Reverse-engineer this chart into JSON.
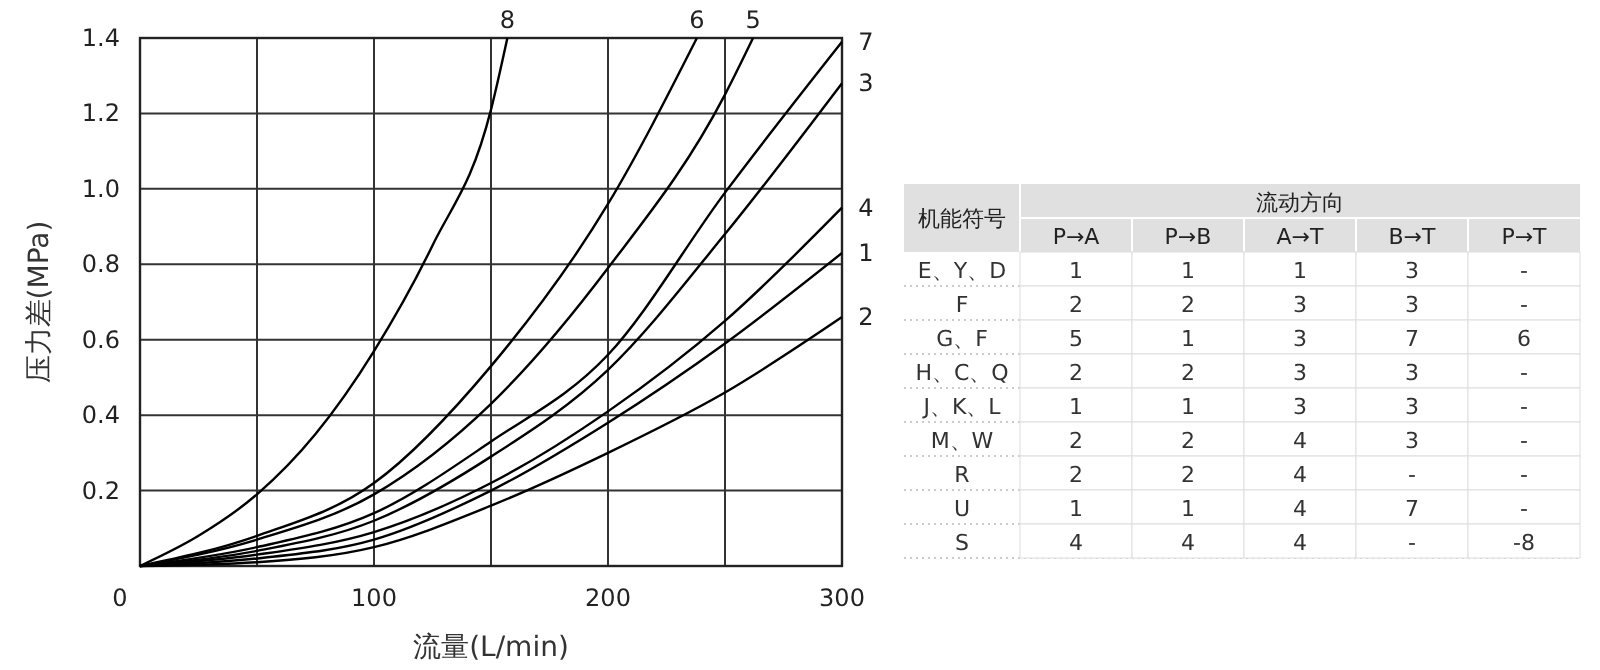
{
  "chart_data": [
    {
      "type": "line",
      "xlabel": "流量(L/min)",
      "ylabel": "压力差(MPa)",
      "xlim": [
        0,
        300
      ],
      "ylim": [
        0,
        1.4
      ],
      "xticks": [
        0,
        {
          "value": 50,
          "label": null
        },
        100,
        {
          "value": 150,
          "label": null
        },
        200,
        {
          "value": 250,
          "label": null
        },
        300
      ],
      "yticks": [
        {
          "value": 0,
          "label": null
        },
        0.2,
        0.4,
        0.6,
        0.8,
        {
          "value": 1,
          "label": "1.0"
        },
        1.2,
        1.4
      ],
      "grid": true,
      "marker": "none",
      "line_style": "solid",
      "series": [
        {
          "name": "8",
          "color": "#000000",
          "x": [
            0,
            25,
            50,
            75,
            100,
            125,
            150,
            157
          ],
          "values": [
            0,
            0.08,
            0.19,
            0.35,
            0.57,
            0.85,
            1.21,
            1.4
          ]
        },
        {
          "name": "6",
          "color": "#000000",
          "x": [
            0,
            50,
            100,
            150,
            200,
            238
          ],
          "values": [
            0,
            0.08,
            0.22,
            0.53,
            0.96,
            1.4
          ]
        },
        {
          "name": "5",
          "color": "#000000",
          "x": [
            0,
            50,
            100,
            150,
            200,
            250,
            262
          ],
          "values": [
            0,
            0.07,
            0.19,
            0.43,
            0.79,
            1.25,
            1.4
          ]
        },
        {
          "name": "7",
          "color": "#000000",
          "x": [
            0,
            50,
            100,
            150,
            200,
            250,
            300
          ],
          "values": [
            0,
            0.05,
            0.14,
            0.33,
            0.56,
            0.99,
            1.39
          ]
        },
        {
          "name": "3",
          "color": "#000000",
          "x": [
            0,
            50,
            100,
            150,
            200,
            250,
            300
          ],
          "values": [
            0,
            0.04,
            0.12,
            0.29,
            0.52,
            0.88,
            1.28
          ]
        },
        {
          "name": "4",
          "color": "#000000",
          "x": [
            0,
            50,
            100,
            150,
            200,
            250,
            300
          ],
          "values": [
            0,
            0.03,
            0.09,
            0.22,
            0.41,
            0.65,
            0.95
          ]
        },
        {
          "name": "1",
          "color": "#000000",
          "x": [
            0,
            50,
            100,
            150,
            200,
            250,
            300
          ],
          "values": [
            0,
            0.02,
            0.07,
            0.2,
            0.38,
            0.59,
            0.83
          ]
        },
        {
          "name": "2",
          "color": "#000000",
          "x": [
            0,
            50,
            100,
            150,
            200,
            250,
            300
          ],
          "values": [
            0,
            0.01,
            0.05,
            0.16,
            0.3,
            0.46,
            0.66
          ]
        }
      ]
    },
    {
      "type": "other",
      "title": "流动方向",
      "ylabel": "机能符号",
      "categories": [
        "P→A",
        "P→B",
        "A→T",
        "B→T",
        "P→T"
      ],
      "y_categories": [
        "E、Y、D",
        "F",
        "G、F",
        "H、C、Q",
        "J、K、L",
        "M、W",
        "R",
        "U",
        "S"
      ],
      "cell_labels": [
        [
          "1",
          "1",
          "1",
          "3",
          "-"
        ],
        [
          "2",
          "2",
          "3",
          "3",
          "-"
        ],
        [
          "5",
          "1",
          "3",
          "7",
          "6"
        ],
        [
          "2",
          "2",
          "3",
          "3",
          "-"
        ],
        [
          "1",
          "1",
          "3",
          "3",
          "-"
        ],
        [
          "2",
          "2",
          "4",
          "3",
          "-"
        ],
        [
          "2",
          "2",
          "4",
          "-",
          "-"
        ],
        [
          "1",
          "1",
          "4",
          "7",
          "-"
        ],
        [
          "4",
          "4",
          "4",
          "-",
          "-8"
        ]
      ]
    }
  ]
}
